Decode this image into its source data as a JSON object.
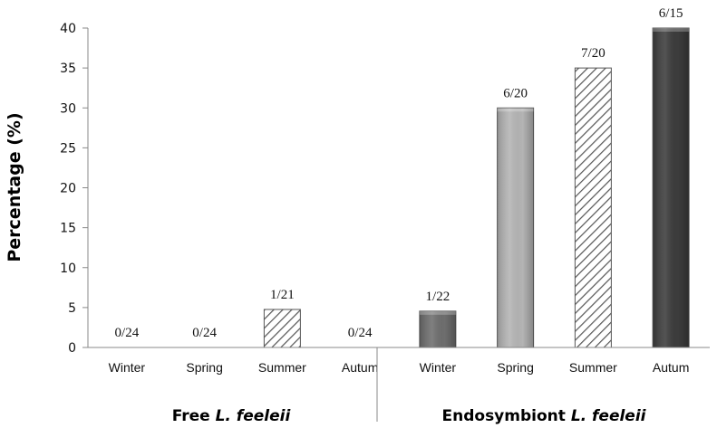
{
  "chart_data": {
    "type": "bar",
    "ylabel": "Percentage (%)",
    "ylim": [
      0,
      40
    ],
    "yticks": [
      "0",
      "5",
      "10",
      "15",
      "20",
      "25",
      "30",
      "35",
      "40"
    ],
    "grid": false,
    "groups": [
      {
        "prefix": "Free ",
        "italic": "L. feeleii"
      },
      {
        "prefix": "Endosymbiont ",
        "italic": "L. feeleii"
      }
    ],
    "bars": [
      {
        "group": 0,
        "category": "Winter",
        "value": 0,
        "label": "0/24",
        "style": "none"
      },
      {
        "group": 0,
        "category": "Spring",
        "value": 0,
        "label": "0/24",
        "style": "none"
      },
      {
        "group": 0,
        "category": "Summer",
        "value": 4.76,
        "label": "1/21",
        "style": "hatched"
      },
      {
        "group": 0,
        "category": "Autum",
        "value": 0,
        "label": "0/24",
        "style": "none"
      },
      {
        "group": 1,
        "category": "Winter",
        "value": 4.55,
        "label": "1/22",
        "style": "dark-gray"
      },
      {
        "group": 1,
        "category": "Spring",
        "value": 30,
        "label": "6/20",
        "style": "light-gray"
      },
      {
        "group": 1,
        "category": "Summer",
        "value": 35,
        "label": "7/20",
        "style": "hatched"
      },
      {
        "group": 1,
        "category": "Autum",
        "value": 40,
        "label": "6/15",
        "style": "black"
      }
    ],
    "colors": {
      "dark-gray": "#6e6e6e",
      "light-gray": "#b4b4b4",
      "black": "#3c3c3c",
      "hatch": "#555555"
    }
  }
}
